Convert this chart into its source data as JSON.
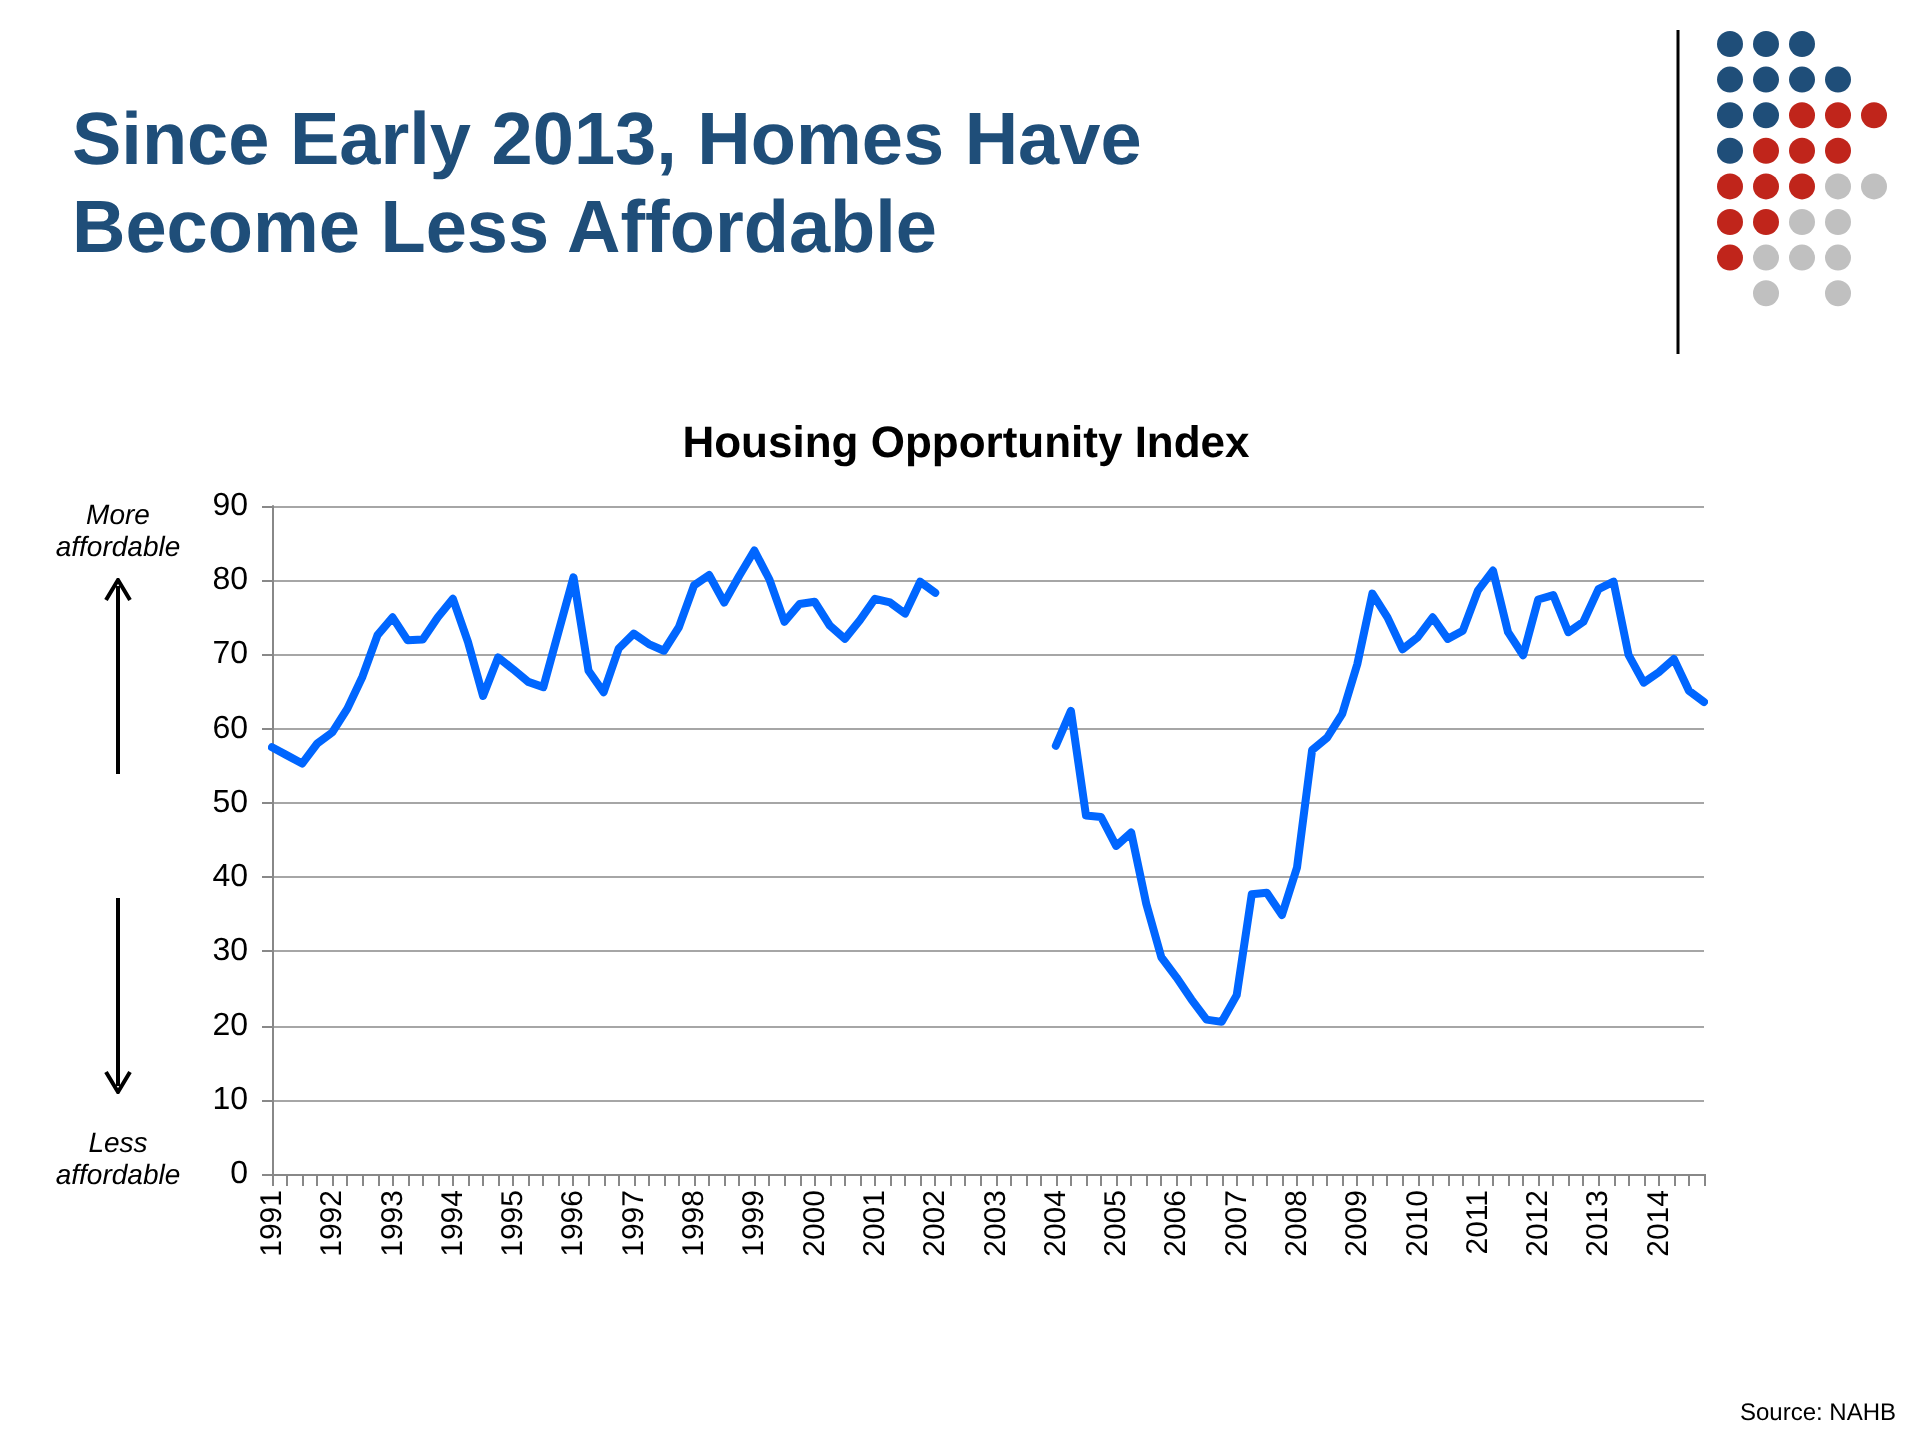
{
  "chart_data": {
    "type": "line",
    "title": "Since Early 2013, Homes Have Become Less Affordable",
    "subtitle": "Housing Opportunity Index",
    "categories": [
      "1991",
      null,
      null,
      null,
      "1992",
      null,
      null,
      null,
      "1993",
      null,
      null,
      null,
      "1994",
      null,
      null,
      null,
      "1995",
      null,
      null,
      null,
      "1996",
      null,
      null,
      null,
      "1997",
      null,
      null,
      null,
      "1998",
      null,
      null,
      null,
      "1999",
      null,
      null,
      null,
      "2000",
      null,
      null,
      null,
      "2001",
      null,
      null,
      null,
      "2002",
      null,
      null,
      null,
      "2003",
      null,
      null,
      null,
      "2004",
      null,
      null,
      null,
      "2005",
      null,
      null,
      null,
      "2006",
      null,
      null,
      null,
      "2007",
      null,
      null,
      null,
      "2008",
      null,
      null,
      null,
      "2009",
      null,
      null,
      null,
      "2010",
      null,
      null,
      null,
      "2011",
      null,
      null,
      null,
      "2012",
      null,
      null,
      null,
      "2013",
      null,
      null,
      null,
      "2014",
      null,
      null,
      null
    ],
    "series": [
      {
        "color": "#0066ff",
        "values": [
          57.5,
          56.4,
          55.3,
          58,
          59.5,
          62.7,
          67,
          72.6,
          75,
          71.9,
          72,
          75,
          77.5,
          71.7,
          64.4,
          69.6,
          68,
          66.3,
          65.6,
          73,
          80.4,
          67.8,
          64.9,
          70.8,
          72.8,
          71.4,
          70.5,
          73.7,
          79.3,
          80.7,
          77,
          80.6,
          84,
          80.1,
          74.4,
          76.8,
          77.1,
          73.9,
          72.1,
          74.6,
          77.5,
          77,
          75.5,
          79.8,
          78.3,
          null,
          null,
          null,
          null,
          null,
          null,
          null,
          57.7,
          62.4,
          48.3,
          48.1,
          44.2,
          46,
          36.4,
          29.2,
          26.5,
          23.5,
          20.8,
          20.5,
          24.1,
          37.7,
          37.9,
          34.9,
          41.3,
          57.1,
          58.8,
          62,
          68.7,
          78.2,
          75,
          70.7,
          72.3,
          75,
          72.1,
          73.2,
          78.6,
          81.3,
          73,
          69.9,
          77.4,
          78,
          73,
          74.4,
          78.8,
          79.8,
          69.9,
          66.2,
          67.6,
          69.4,
          65.1,
          63.6
        ]
      }
    ],
    "ylim": [
      0,
      90
    ],
    "yticks": [
      0,
      10,
      20,
      30,
      40,
      50,
      60,
      70,
      80,
      90
    ],
    "grid": "y",
    "marker": "none",
    "line_style": "solid",
    "annotations": [
      "More affordable",
      "Less affordable",
      "Source: NAHB"
    ]
  }
}
